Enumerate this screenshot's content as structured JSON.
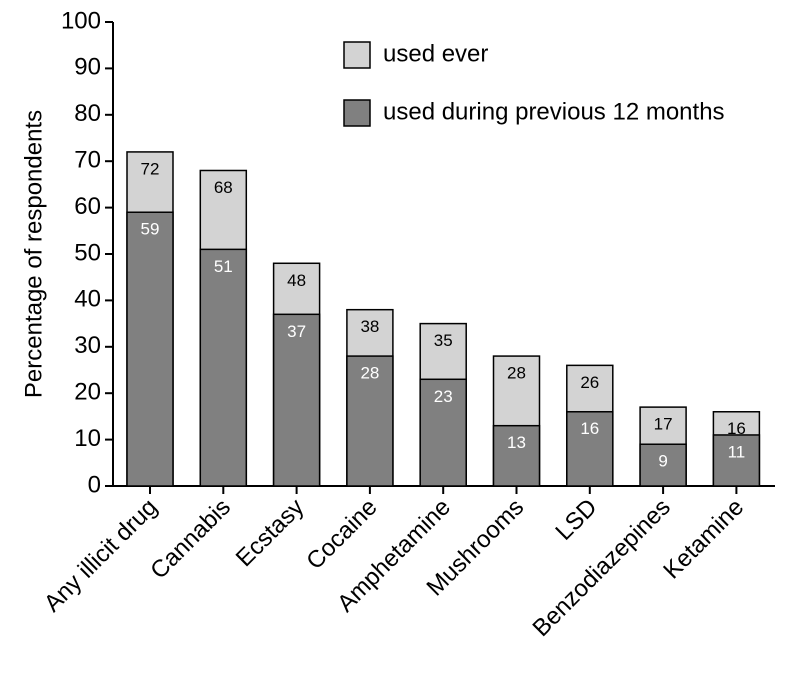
{
  "chart_data": {
    "type": "bar",
    "mode": "overlap",
    "y_label": "Percentage of respondents",
    "categories": [
      "Any illicit drug",
      "Cannabis",
      "Ecstasy",
      "Cocaine",
      "Amphetamine",
      "Mushrooms",
      "LSD",
      "Benzodiazepines",
      "Ketamine"
    ],
    "series": [
      {
        "name": "used ever",
        "color": "#d3d3d3",
        "label_color": "#000000",
        "values": [
          72,
          68,
          48,
          38,
          35,
          28,
          26,
          17,
          16
        ]
      },
      {
        "name": "used during previous 12 months",
        "color": "#808080",
        "label_color": "#ffffff",
        "values": [
          59,
          51,
          37,
          28,
          23,
          13,
          16,
          9,
          11
        ]
      }
    ],
    "ylim": [
      0,
      100
    ],
    "yticks": [
      0,
      10,
      20,
      30,
      40,
      50,
      60,
      70,
      80,
      90,
      100
    ],
    "grid": false
  }
}
